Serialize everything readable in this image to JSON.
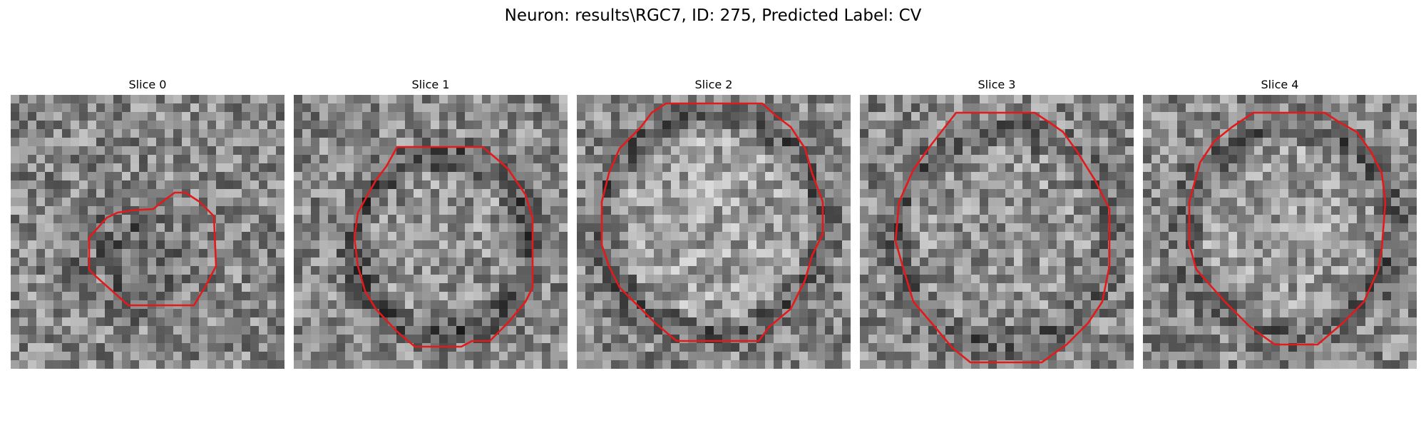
{
  "figure": {
    "title": "Neuron: results\\RGC7, ID: 275, Predicted Label: CV"
  },
  "slices": [
    {
      "title": "Slice 0",
      "contour_color": "#e31a1c"
    },
    {
      "title": "Slice 1",
      "contour_color": "#e31a1c"
    },
    {
      "title": "Slice 2",
      "contour_color": "#e31a1c"
    },
    {
      "title": "Slice 3",
      "contour_color": "#e31a1c"
    },
    {
      "title": "Slice 4",
      "contour_color": "#e31a1c"
    }
  ],
  "colormap": "gray"
}
